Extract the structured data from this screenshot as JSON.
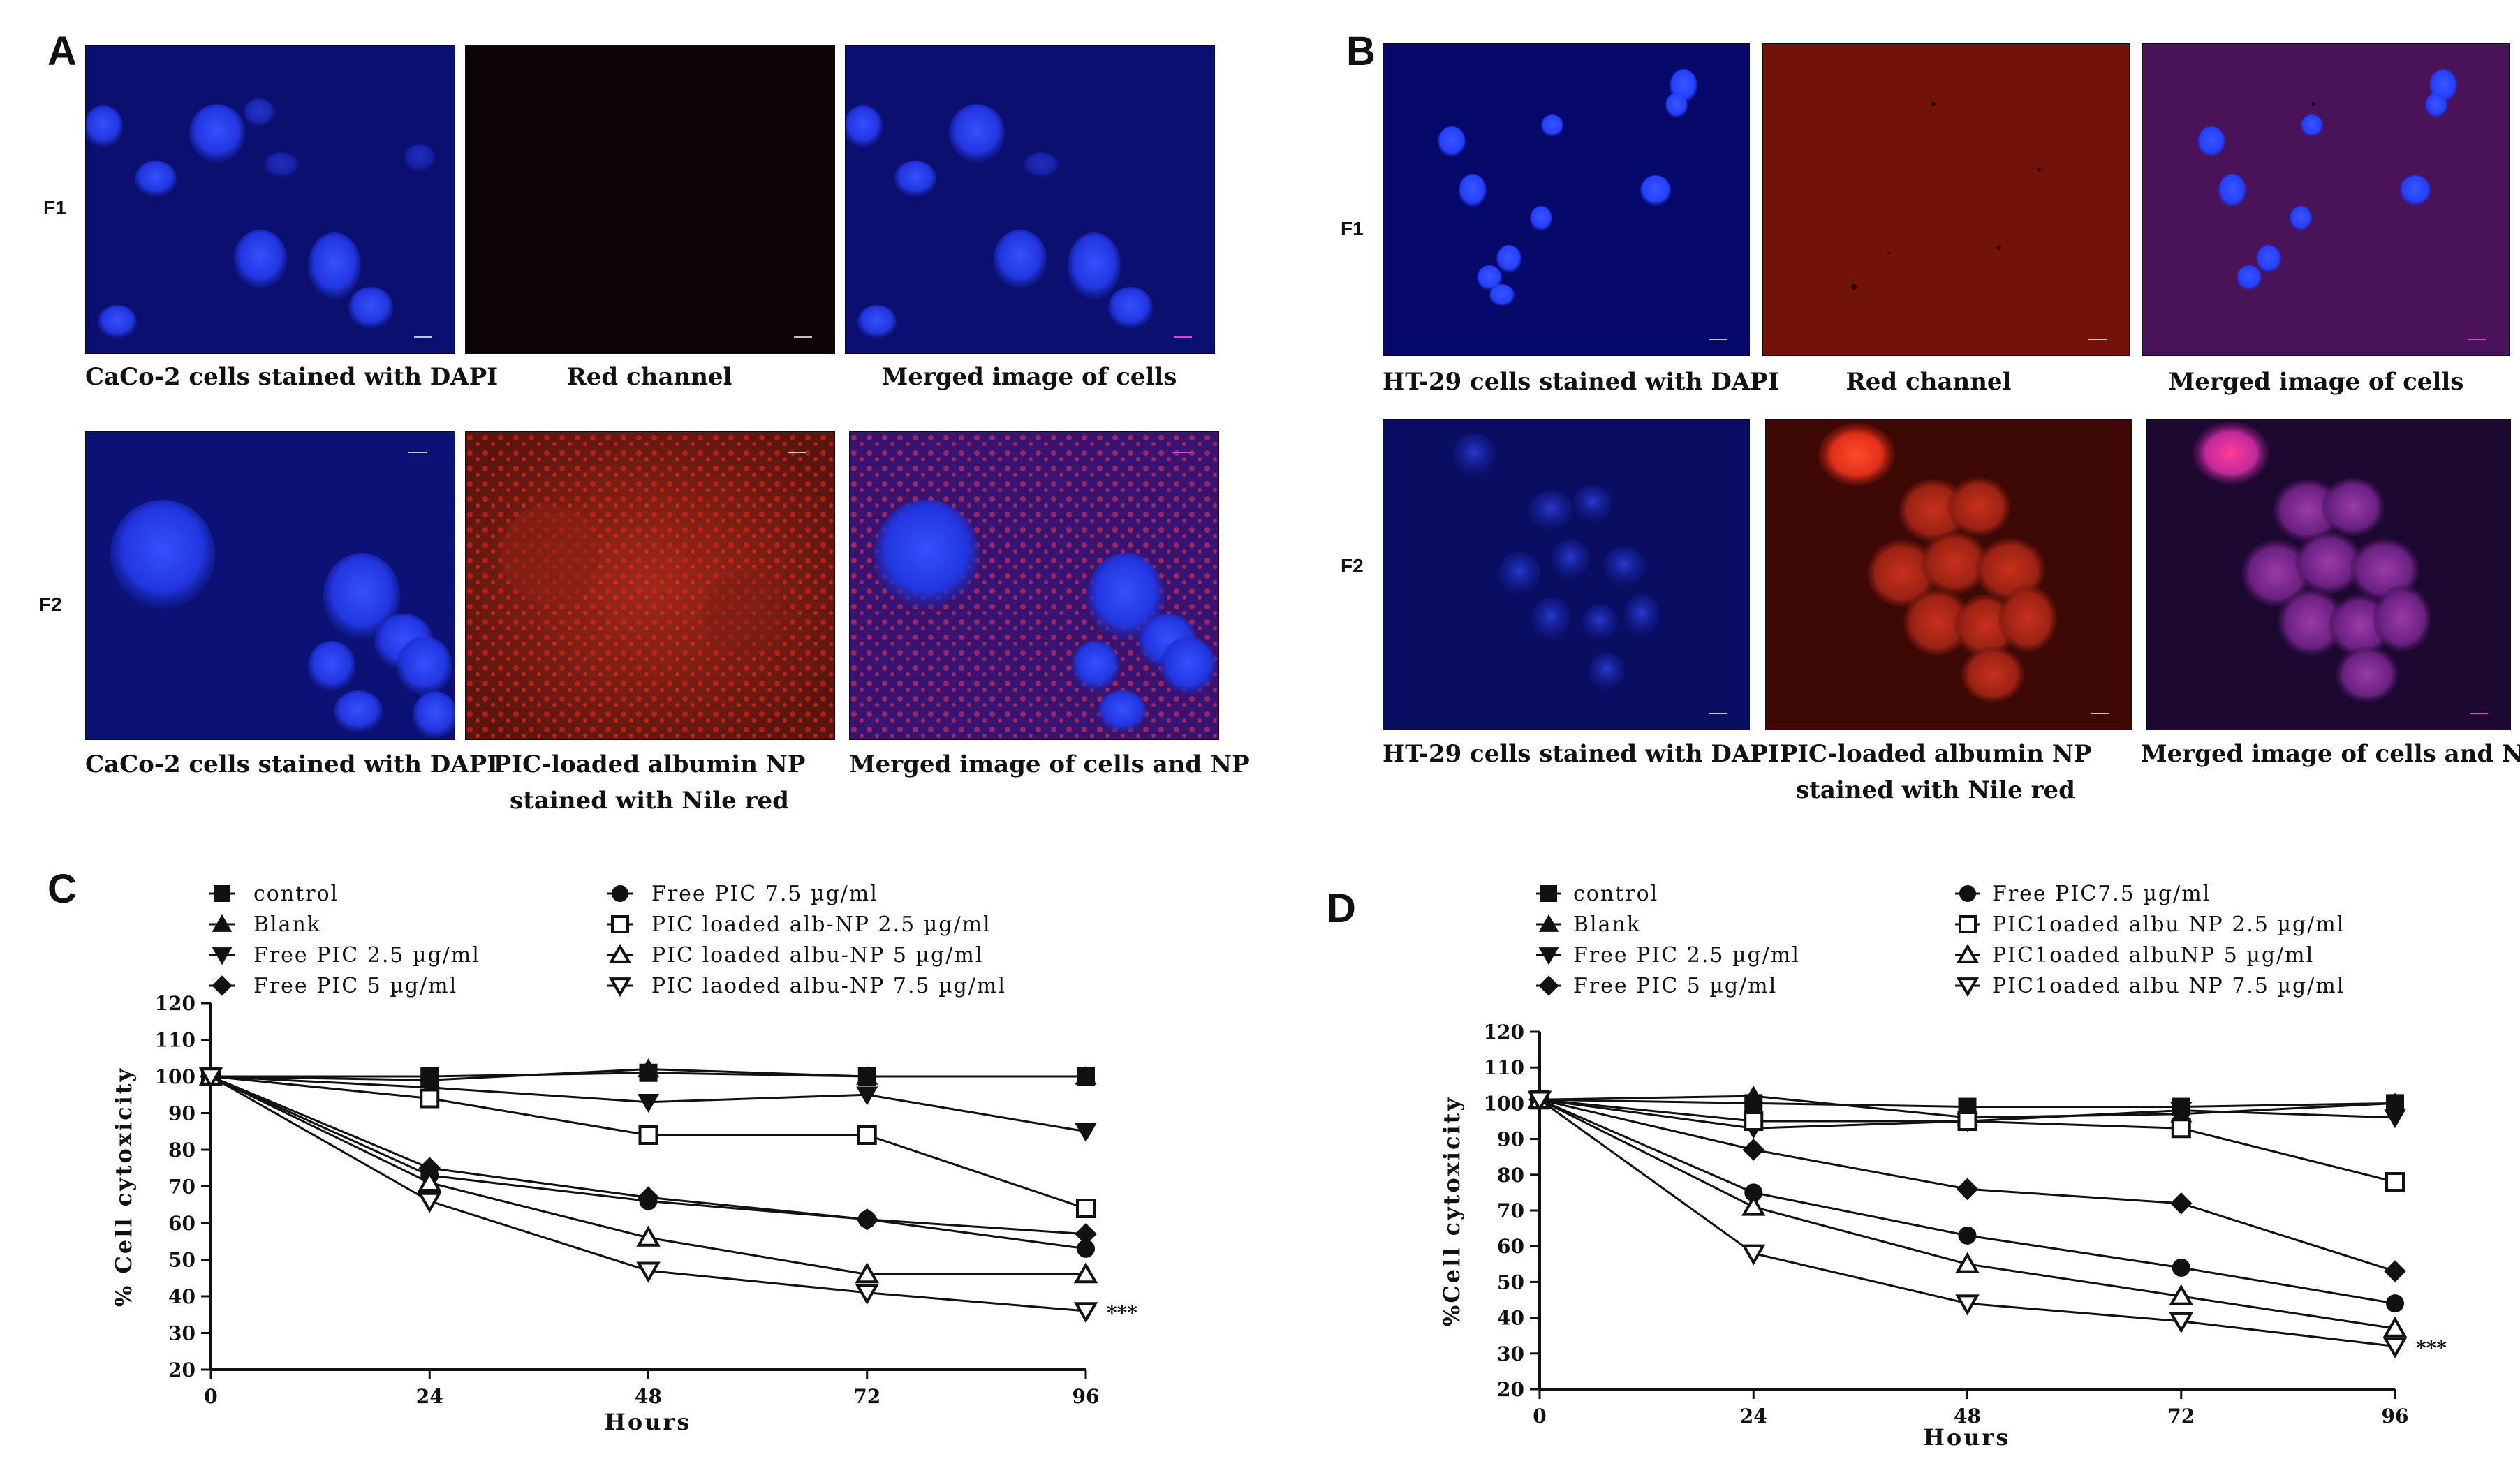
{
  "panels": {
    "A": {
      "letter": "A",
      "rows": [
        "F1",
        "F2"
      ],
      "captions": {
        "r1c1": "CaCo-2  cells stained with  DAPI",
        "r1c2": "Red  channel",
        "r1c3": "Merged  image  of  cells",
        "r2c1": "CaCo-2  cells stained with  DAPI",
        "r2c2a": "PIC-loaded   albumin  NP",
        "r2c2b": "stained with Nile red",
        "r2c3": "Merged  image of cells and  NP"
      }
    },
    "B": {
      "letter": "B",
      "rows": [
        "F1",
        "F2"
      ],
      "captions": {
        "r1c1": "HT-29  cells stained  with  DAPI",
        "r1c2": "Red  channel",
        "r1c3": "Merged  image  of  cells",
        "r2c1": "HT-29  cells stained  with  DAPI",
        "r2c2a": "PIC-loaded   albumin  NP",
        "r2c2b": "stained with Nile red",
        "r2c3": "Merged  image  of cells and  NP"
      }
    },
    "C": {
      "letter": "C"
    },
    "D": {
      "letter": "D"
    }
  },
  "colors": {
    "dapi_blue": "#1f3cff",
    "background_blue": "#0a0f6a",
    "red_channel_dark": "#0b0405",
    "red_channel": "#7a1208",
    "nile_red": "#e02010",
    "merged_magenta": "#b030c0",
    "line": "#111111"
  },
  "chart_data": [
    {
      "type": "line",
      "panel": "C",
      "xlabel": "Hours",
      "ylabel": "% Cell cytoxicity",
      "x": [
        0,
        24,
        48,
        72,
        96
      ],
      "xlim": [
        0,
        96
      ],
      "ylim": [
        20,
        120
      ],
      "yticks": [
        20,
        30,
        40,
        50,
        60,
        70,
        80,
        90,
        100,
        110,
        120
      ],
      "annotation": "***",
      "series": [
        {
          "name": "control",
          "marker": "square-filled",
          "values": [
            100,
            100,
            101,
            100,
            100
          ]
        },
        {
          "name": "Blank",
          "marker": "triangle-filled",
          "values": [
            100,
            99,
            102,
            100,
            100
          ]
        },
        {
          "name": "Free PIC 2.5 µg/ml",
          "marker": "triangle-down-filled",
          "values": [
            100,
            97,
            93,
            95,
            85
          ]
        },
        {
          "name": "Free PIC 5 µg/ml",
          "marker": "diamond-filled",
          "values": [
            100,
            75,
            67,
            61,
            57
          ]
        },
        {
          "name": "Free PIC 7.5 µg/ml",
          "marker": "circle-filled",
          "values": [
            100,
            73,
            66,
            61,
            53
          ]
        },
        {
          "name": "PIC loaded alb-NP 2.5 µg/ml",
          "marker": "square-open",
          "values": [
            100,
            94,
            84,
            84,
            64
          ]
        },
        {
          "name": "PIC loaded albu-NP 5 µg/ml",
          "marker": "triangle-open",
          "values": [
            100,
            71,
            56,
            46,
            46
          ]
        },
        {
          "name": "PIC laoded albu-NP 7.5 µg/ml",
          "marker": "triangle-down-open",
          "values": [
            100,
            66,
            47,
            41,
            36
          ]
        }
      ],
      "legend": {
        "col1": [
          "control",
          "Blank",
          "Free PIC 2.5 µg/ml",
          "Free PIC 5 µg/ml"
        ],
        "col2": [
          "Free PIC 7.5 µg/ml",
          "PIC loaded alb-NP 2.5 µg/ml",
          "PIC loaded albu-NP 5 µg/ml",
          "PIC laoded albu-NP 7.5 µg/ml"
        ]
      }
    },
    {
      "type": "line",
      "panel": "D",
      "xlabel": "Hours",
      "ylabel": "%Cell cytoxicity",
      "x": [
        0,
        24,
        48,
        72,
        96
      ],
      "xlim": [
        0,
        96
      ],
      "ylim": [
        20,
        120
      ],
      "yticks": [
        20,
        30,
        40,
        50,
        60,
        70,
        80,
        90,
        100,
        110,
        120
      ],
      "annotation": "***",
      "series": [
        {
          "name": "control",
          "marker": "square-filled",
          "values": [
            101,
            100,
            99,
            99,
            100
          ]
        },
        {
          "name": "Blank",
          "marker": "triangle-filled",
          "values": [
            101,
            102,
            96,
            97,
            100
          ]
        },
        {
          "name": "Free PIC 2.5 µg/ml",
          "marker": "triangle-down-filled",
          "values": [
            101,
            93,
            95,
            98,
            96
          ]
        },
        {
          "name": "Free PIC 5 µg/ml",
          "marker": "diamond-filled",
          "values": [
            101,
            87,
            76,
            72,
            53
          ]
        },
        {
          "name": "Free PIC7.5 µg/ml",
          "marker": "circle-filled",
          "values": [
            101,
            75,
            63,
            54,
            44
          ]
        },
        {
          "name": "PIC1oaded albu NP 2.5 µg/ml",
          "marker": "square-open",
          "values": [
            101,
            95,
            95,
            93,
            78
          ]
        },
        {
          "name": "PIC1oaded albuNP 5 µg/ml",
          "marker": "triangle-open",
          "values": [
            101,
            71,
            55,
            46,
            37
          ]
        },
        {
          "name": "PIC1oaded albu NP 7.5 µg/ml",
          "marker": "triangle-down-open",
          "values": [
            101,
            58,
            44,
            39,
            32
          ]
        }
      ],
      "legend": {
        "col1": [
          "control",
          "Blank",
          "Free PIC 2.5 µg/ml",
          "Free PIC 5 µg/ml"
        ],
        "col2": [
          "Free PIC7.5 µg/ml",
          "PIC1oaded albu NP 2.5 µg/ml",
          "PIC1oaded albuNP 5 µg/ml",
          "PIC1oaded albu NP 7.5 µg/ml"
        ]
      }
    }
  ]
}
